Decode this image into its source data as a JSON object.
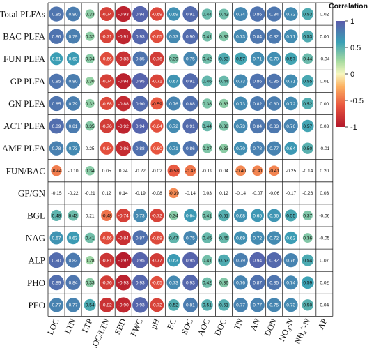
{
  "chart_data": {
    "type": "heatmap",
    "legend_title": "Correlation",
    "colorbar_ticks": [
      "1",
      "0.5",
      "0",
      "-0.5",
      "-1"
    ],
    "colorbar_range": [
      -1,
      1
    ],
    "colors": {
      "negative": "#b2182b",
      "neutral": "#f7f7bf",
      "positive": "#5b5bab"
    },
    "legend_position": "right",
    "rows": [
      "Total PLFAs",
      "BAC PLFA",
      "FUN PLFA",
      "GP PLFA",
      "GN PLFA",
      "ACT PLFA",
      "AMF PLFA",
      "FUN/BAC",
      "GP/GN",
      "BGL",
      "NAG",
      "ALP",
      "PHO",
      "PEO"
    ],
    "columns": [
      "LOC",
      "LTN",
      "LTP",
      "LOC/LTN",
      "SBD",
      "FWC",
      "pH",
      "EC",
      "SOC",
      "AOC",
      "DOC",
      "TN",
      "AN",
      "DON",
      "NO3-N",
      "NH4+-N",
      "AP"
    ],
    "values": [
      [
        0.85,
        0.8,
        0.33,
        -0.74,
        -0.93,
        0.94,
        -0.69,
        0.69,
        0.91,
        0.44,
        0.42,
        0.74,
        0.86,
        0.84,
        0.72,
        0.53,
        0.02
      ],
      [
        0.86,
        0.79,
        0.32,
        -0.71,
        -0.91,
        0.93,
        -0.65,
        0.73,
        0.9,
        0.41,
        0.37,
        0.73,
        0.84,
        0.82,
        0.71,
        0.53,
        0.0
      ],
      [
        0.61,
        0.63,
        0.34,
        -0.66,
        -0.83,
        0.85,
        -0.76,
        0.39,
        0.75,
        0.42,
        0.53,
        0.57,
        0.71,
        0.7,
        0.57,
        0.44,
        -0.04
      ],
      [
        0.85,
        0.8,
        0.3,
        -0.74,
        -0.94,
        0.95,
        -0.71,
        0.67,
        0.91,
        0.46,
        0.44,
        0.73,
        0.86,
        0.85,
        0.71,
        0.55,
        0.01
      ],
      [
        0.85,
        0.79,
        0.32,
        -0.68,
        -0.88,
        0.9,
        -0.59,
        0.76,
        0.88,
        0.38,
        0.33,
        0.73,
        0.82,
        0.8,
        0.72,
        0.52,
        0.0
      ],
      [
        0.89,
        0.81,
        0.35,
        -0.76,
        -0.92,
        0.94,
        -0.64,
        0.72,
        0.91,
        0.44,
        0.38,
        0.73,
        0.84,
        0.83,
        0.76,
        0.57,
        0.03
      ],
      [
        0.78,
        0.73,
        0.25,
        -0.64,
        -0.86,
        0.88,
        -0.6,
        0.71,
        0.86,
        0.37,
        0.33,
        0.7,
        0.78,
        0.77,
        0.64,
        0.5,
        -0.01
      ],
      [
        -0.44,
        -0.1,
        0.34,
        0.05,
        0.24,
        -0.22,
        -0.02,
        -0.58,
        -0.47,
        -0.19,
        0.04,
        -0.4,
        -0.41,
        -0.41,
        -0.25,
        -0.14,
        0.2
      ],
      [
        -0.15,
        -0.22,
        -0.21,
        0.12,
        0.14,
        -0.19,
        -0.08,
        -0.39,
        -0.14,
        0.03,
        0.12,
        -0.14,
        -0.07,
        -0.06,
        -0.17,
        -0.26,
        0.03
      ],
      [
        0.48,
        0.43,
        0.21,
        -0.48,
        -0.74,
        0.73,
        -0.72,
        0.34,
        0.64,
        0.41,
        0.51,
        0.68,
        0.65,
        0.66,
        0.55,
        0.37,
        -0.06
      ],
      [
        0.67,
        0.63,
        0.41,
        -0.66,
        -0.84,
        0.87,
        -0.68,
        0.47,
        0.75,
        0.45,
        0.45,
        0.69,
        0.72,
        0.72,
        0.62,
        0.36,
        -0.05
      ],
      [
        0.9,
        0.82,
        0.28,
        -0.81,
        -0.97,
        0.95,
        -0.77,
        0.63,
        0.95,
        0.41,
        0.53,
        0.79,
        0.94,
        0.92,
        0.76,
        0.54,
        0.07
      ],
      [
        0.89,
        0.84,
        0.33,
        -0.76,
        -0.93,
        0.93,
        -0.65,
        0.73,
        0.93,
        0.42,
        0.36,
        0.76,
        0.87,
        0.85,
        0.74,
        0.59,
        0.02
      ],
      [
        0.77,
        0.77,
        0.54,
        -0.82,
        -0.9,
        0.93,
        -0.72,
        0.52,
        0.81,
        0.51,
        0.51,
        0.77,
        0.77,
        0.75,
        0.73,
        0.5,
        0.04
      ]
    ]
  }
}
